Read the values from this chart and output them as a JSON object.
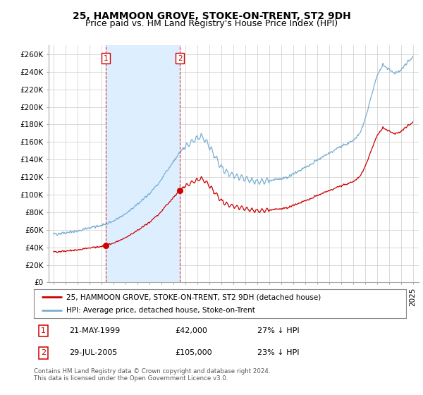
{
  "title": "25, HAMMOON GROVE, STOKE-ON-TRENT, ST2 9DH",
  "subtitle": "Price paid vs. HM Land Registry's House Price Index (HPI)",
  "ylim": [
    0,
    270000
  ],
  "yticks": [
    0,
    20000,
    40000,
    60000,
    80000,
    100000,
    120000,
    140000,
    160000,
    180000,
    200000,
    220000,
    240000,
    260000
  ],
  "ytick_labels": [
    "£0",
    "£20K",
    "£40K",
    "£60K",
    "£80K",
    "£100K",
    "£120K",
    "£140K",
    "£160K",
    "£180K",
    "£200K",
    "£220K",
    "£240K",
    "£260K"
  ],
  "sale1_year": 1999.38,
  "sale1_price": 42000,
  "sale2_year": 2005.57,
  "sale2_price": 105000,
  "sale_color": "#cc0000",
  "hpi_color": "#7ab0d4",
  "shade_color": "#ddeeff",
  "dashed_color": "#cc0000",
  "background_color": "#ffffff",
  "grid_color": "#cccccc",
  "legend_label_sale": "25, HAMMOON GROVE, STOKE-ON-TRENT, ST2 9DH (detached house)",
  "legend_label_hpi": "HPI: Average price, detached house, Stoke-on-Trent",
  "annotation1_label": "1",
  "annotation1_date": "21-MAY-1999",
  "annotation1_price": "£42,000",
  "annotation1_hpi": "27% ↓ HPI",
  "annotation2_label": "2",
  "annotation2_date": "29-JUL-2005",
  "annotation2_price": "£105,000",
  "annotation2_hpi": "23% ↓ HPI",
  "footer": "Contains HM Land Registry data © Crown copyright and database right 2024.\nThis data is licensed under the Open Government Licence v3.0.",
  "title_fontsize": 10,
  "subtitle_fontsize": 9,
  "tick_fontsize": 7.5,
  "legend_fontsize": 7.5,
  "ann_fontsize": 8
}
